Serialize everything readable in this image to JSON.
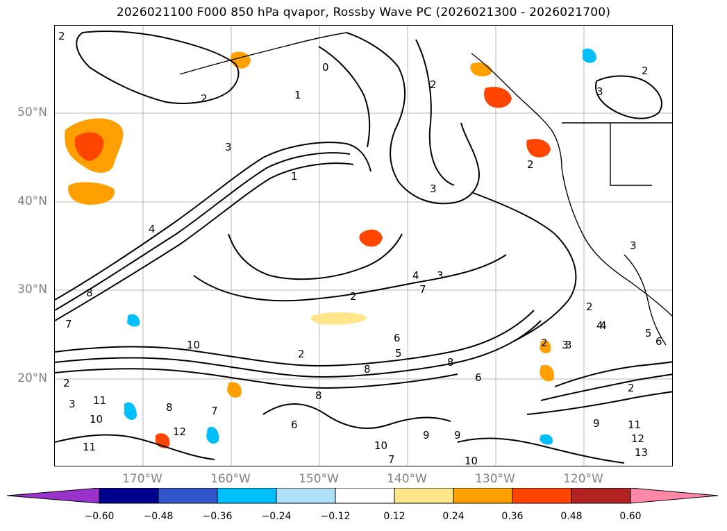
{
  "title": "2026021100 F000 850 hPa qvapor, Rossby Wave PC (2026021300 - 2026021700)",
  "map": {
    "projection": "cylindrical",
    "lat_labels": [
      "50°N",
      "40°N",
      "30°N",
      "20°N"
    ],
    "lon_labels": [
      "170°W",
      "160°W",
      "150°W",
      "140°W",
      "130°W",
      "120°W"
    ],
    "grid": true,
    "contour_labels": [
      "2",
      "2",
      "1",
      "2",
      "3",
      "0",
      "2",
      "3",
      "2",
      "3",
      "4",
      "3",
      "2",
      "3",
      "4",
      "3",
      "4",
      "2",
      "1",
      "7",
      "8",
      "10",
      "8",
      "2",
      "5",
      "6",
      "7",
      "8",
      "6",
      "2",
      "3",
      "2",
      "4",
      "5",
      "6",
      "2",
      "3",
      "11",
      "10",
      "11",
      "12",
      "7",
      "8",
      "6",
      "8",
      "9",
      "10",
      "7",
      "9",
      "10",
      "11",
      "12",
      "13",
      "9"
    ]
  },
  "colorbar": {
    "ticks": [
      "−0.60",
      "−0.48",
      "−0.36",
      "−0.24",
      "−0.12",
      "0.12",
      "0.24",
      "0.36",
      "0.48",
      "0.60"
    ],
    "colors": [
      "#9933cc",
      "#000090",
      "#3355cc",
      "#00bfff",
      "#aee0f8",
      "#ffffff",
      "#ffe68a",
      "#ffa000",
      "#ff4500",
      "#b22222",
      "#ff88a8"
    ]
  }
}
